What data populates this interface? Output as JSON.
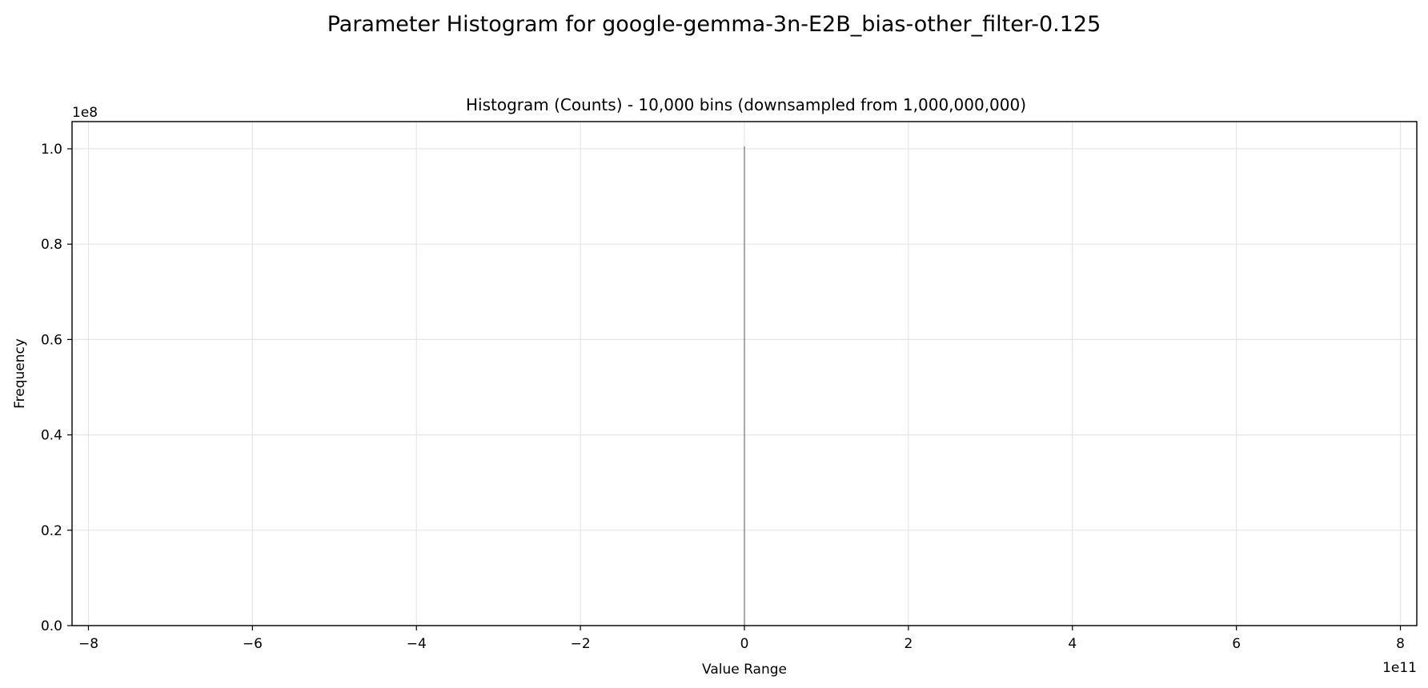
{
  "chart_data": {
    "type": "bar",
    "title": "Parameter Histogram for google-gemma-3n-E2B_bias-other_filter-0.125",
    "subtitle": "Histogram (Counts) - 10,000 bins (downsampled from 1,000,000,000)",
    "xlabel": "Value Range",
    "ylabel": "Frequency",
    "x_offset_label": "1e11",
    "y_offset_label": "1e8",
    "xlim": [
      -8.2,
      8.2
    ],
    "ylim": [
      0,
      1.057
    ],
    "x_ticks": [
      -8,
      -6,
      -4,
      -2,
      0,
      2,
      4,
      6,
      8
    ],
    "x_tick_labels": [
      "−8",
      "−6",
      "−4",
      "−2",
      "0",
      "2",
      "4",
      "6",
      "8"
    ],
    "y_ticks": [
      0.0,
      0.2,
      0.4,
      0.6,
      0.8,
      1.0
    ],
    "y_tick_labels": [
      "0.0",
      "0.2",
      "0.4",
      "0.6",
      "0.8",
      "1.0"
    ],
    "grid": true,
    "bins": [
      {
        "x": 0.0,
        "value": 1.005
      }
    ],
    "colors": {
      "bar": "#555555",
      "grid": "#e6e6e6",
      "axes": "#000000"
    }
  }
}
